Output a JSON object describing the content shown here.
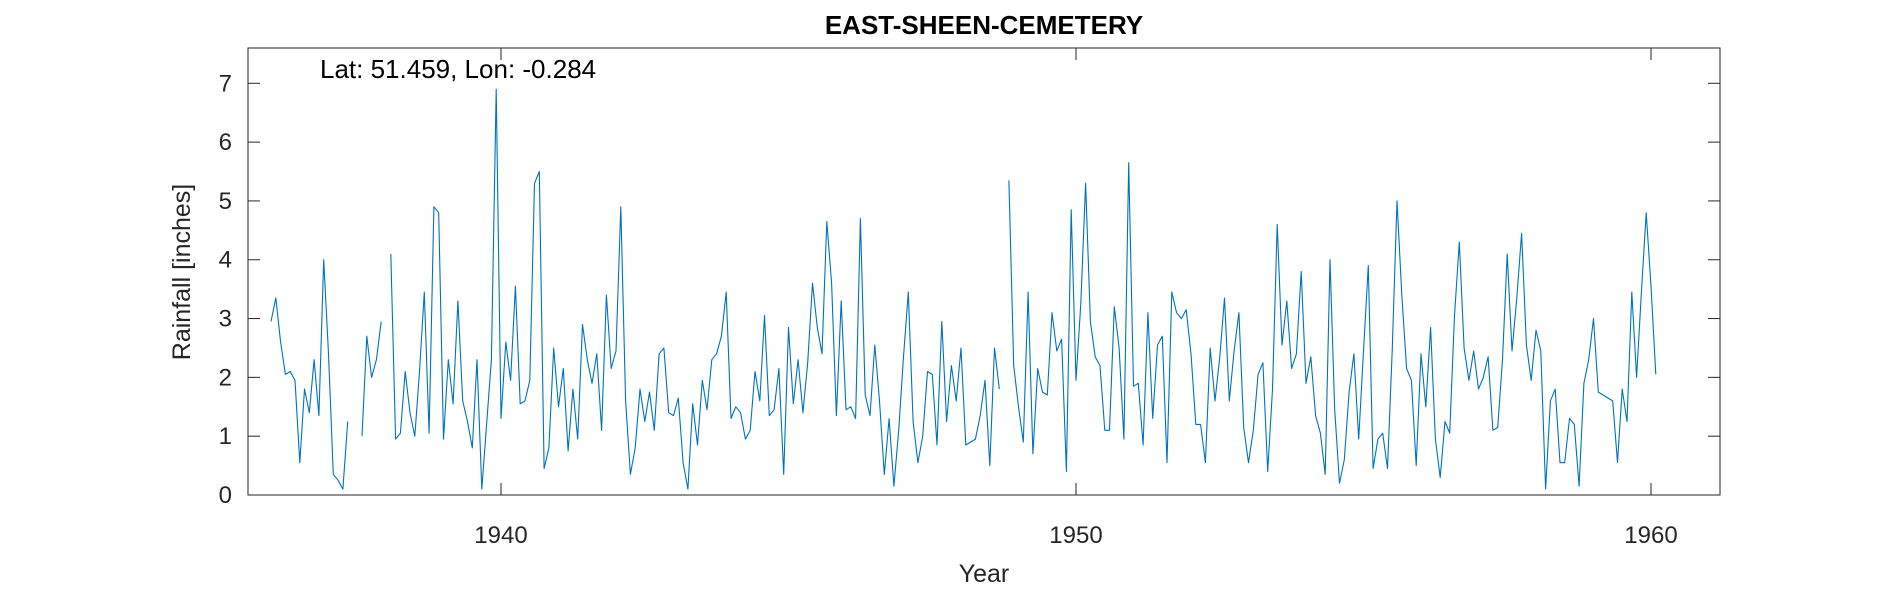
{
  "chart_data": {
    "type": "line",
    "title": "EAST-SHEEN-CEMETERY",
    "xlabel": "Year",
    "ylabel": "Rainfall [inches]",
    "annotation": "Lat: 51.459, Lon: -0.284",
    "xlim": [
      1935.6,
      1961.2
    ],
    "ylim": [
      0,
      7.6
    ],
    "xticks": [
      1940,
      1950,
      1960
    ],
    "yticks": [
      0,
      1,
      2,
      3,
      4,
      5,
      6,
      7
    ],
    "grid": false,
    "line_color": "#0072BD",
    "start_year": 1936,
    "start_month": 1,
    "series": [
      {
        "values": [
          2.95,
          3.35,
          2.6,
          2.05,
          2.1,
          1.95,
          0.55,
          1.8,
          1.4,
          2.3,
          1.35,
          4.0,
          2.4,
          0.35,
          0.25,
          0.1,
          1.25,
          null,
          null,
          1.0,
          2.7,
          2.0,
          2.3,
          2.95,
          null,
          4.1,
          0.95,
          1.05,
          2.1,
          1.4,
          1.0,
          2.1,
          3.45,
          1.05,
          4.9,
          4.8,
          0.95,
          2.3,
          1.55,
          3.3,
          1.6,
          1.25,
          0.8,
          2.3,
          0.1,
          1.2,
          2.3,
          6.9,
          1.3,
          2.6,
          1.95,
          3.55,
          1.55,
          1.6,
          1.95,
          5.3,
          5.5,
          0.45,
          0.8,
          2.5,
          1.5,
          2.15,
          0.75,
          1.8,
          0.95,
          2.9,
          2.3,
          1.9,
          2.4,
          1.1,
          3.4,
          2.15,
          2.45,
          4.9,
          1.6,
          0.35,
          0.8,
          1.8,
          1.25,
          1.75,
          1.1,
          2.4,
          2.5,
          1.4,
          1.35,
          1.65,
          0.55,
          0.1,
          1.55,
          0.85,
          1.95,
          1.45,
          2.3,
          2.4,
          2.7,
          3.45,
          1.3,
          1.5,
          1.4,
          0.95,
          1.1,
          2.1,
          1.6,
          3.05,
          1.35,
          1.45,
          2.15,
          0.35,
          2.85,
          1.55,
          2.3,
          1.4,
          2.25,
          3.6,
          2.85,
          2.4,
          4.65,
          3.6,
          1.35,
          3.3,
          1.45,
          1.5,
          1.3,
          4.7,
          1.7,
          1.35,
          2.55,
          1.6,
          0.35,
          1.3,
          0.15,
          1.1,
          2.35,
          3.45,
          1.25,
          0.55,
          1.0,
          2.1,
          2.05,
          0.85,
          2.95,
          1.25,
          2.2,
          1.6,
          2.5,
          0.85,
          0.9,
          0.95,
          1.35,
          1.95,
          0.5,
          2.5,
          1.8,
          null,
          5.35,
          2.2,
          1.5,
          0.9,
          3.45,
          0.7,
          2.15,
          1.75,
          1.7,
          3.1,
          2.45,
          2.65,
          0.4,
          4.85,
          1.95,
          3.25,
          5.3,
          2.95,
          2.35,
          2.2,
          1.1,
          1.1,
          3.2,
          2.5,
          0.95,
          5.65,
          1.85,
          1.9,
          0.85,
          3.1,
          1.3,
          2.55,
          2.7,
          0.55,
          3.45,
          3.1,
          3.0,
          3.15,
          2.4,
          1.2,
          1.2,
          0.55,
          2.5,
          1.6,
          2.35,
          3.35,
          1.6,
          2.45,
          3.1,
          1.15,
          0.55,
          1.1,
          2.05,
          2.25,
          0.4,
          1.8,
          4.6,
          2.55,
          3.3,
          2.15,
          2.4,
          3.8,
          1.9,
          2.35,
          1.35,
          1.05,
          0.35,
          4.0,
          1.45,
          0.2,
          0.6,
          1.75,
          2.4,
          0.95,
          2.45,
          3.9,
          0.45,
          0.95,
          1.05,
          0.45,
          2.45,
          5.0,
          3.4,
          2.15,
          1.95,
          0.5,
          2.4,
          1.5,
          2.85,
          0.95,
          0.3,
          1.25,
          1.05,
          3.05,
          4.3,
          2.5,
          1.95,
          2.45,
          1.8,
          2.0,
          2.35,
          1.1,
          1.15,
          2.3,
          4.1,
          2.45,
          3.35,
          4.45,
          2.55,
          1.95,
          2.8,
          2.45,
          0.1,
          1.6,
          1.8,
          0.55,
          0.55,
          1.3,
          1.2,
          0.15,
          1.9,
          2.3,
          3.0,
          1.75,
          1.7,
          1.65,
          1.6,
          0.55,
          1.8,
          1.25,
          3.45,
          2.0,
          3.45,
          4.8,
          3.55,
          2.05
        ]
      }
    ]
  }
}
